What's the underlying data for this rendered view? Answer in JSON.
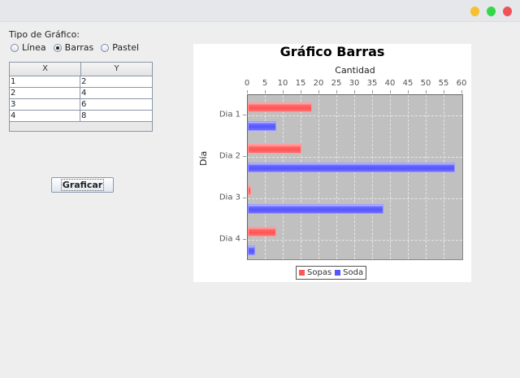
{
  "window": {
    "controls": [
      {
        "name": "minimize",
        "color": "#f5c031"
      },
      {
        "name": "maximize",
        "color": "#33d84a"
      },
      {
        "name": "close",
        "color": "#f0525a"
      }
    ]
  },
  "form": {
    "chart_type_label": "Tipo de Gráfico:",
    "radio_options": [
      {
        "label": "Línea",
        "checked": false
      },
      {
        "label": "Barras",
        "checked": true
      },
      {
        "label": "Pastel",
        "checked": false
      }
    ],
    "table": {
      "columns": [
        "X",
        "Y"
      ],
      "rows": [
        [
          "1",
          "2"
        ],
        [
          "2",
          "4"
        ],
        [
          "3",
          "6"
        ],
        [
          "4",
          "8"
        ]
      ]
    },
    "graph_button_label": "Graficar"
  },
  "chart_data": {
    "type": "bar",
    "orientation": "horizontal",
    "title": "Gráfico Barras",
    "xlabel": "Cantidad",
    "ylabel": "Día",
    "categories": [
      "Dia 1",
      "Dia 2",
      "Dia 3",
      "Dia 4"
    ],
    "series": [
      {
        "name": "Sopas",
        "color": "#ff5555",
        "values": [
          18,
          15,
          1,
          8
        ]
      },
      {
        "name": "Soda",
        "color": "#5555ff",
        "values": [
          8,
          58,
          38,
          2
        ]
      }
    ],
    "xlim": [
      0,
      60
    ],
    "xticks": [
      "0",
      "5",
      "10",
      "15",
      "20",
      "25",
      "30",
      "35",
      "40",
      "45",
      "50",
      "55",
      "60"
    ],
    "grid": true,
    "legend_position": "bottom"
  }
}
